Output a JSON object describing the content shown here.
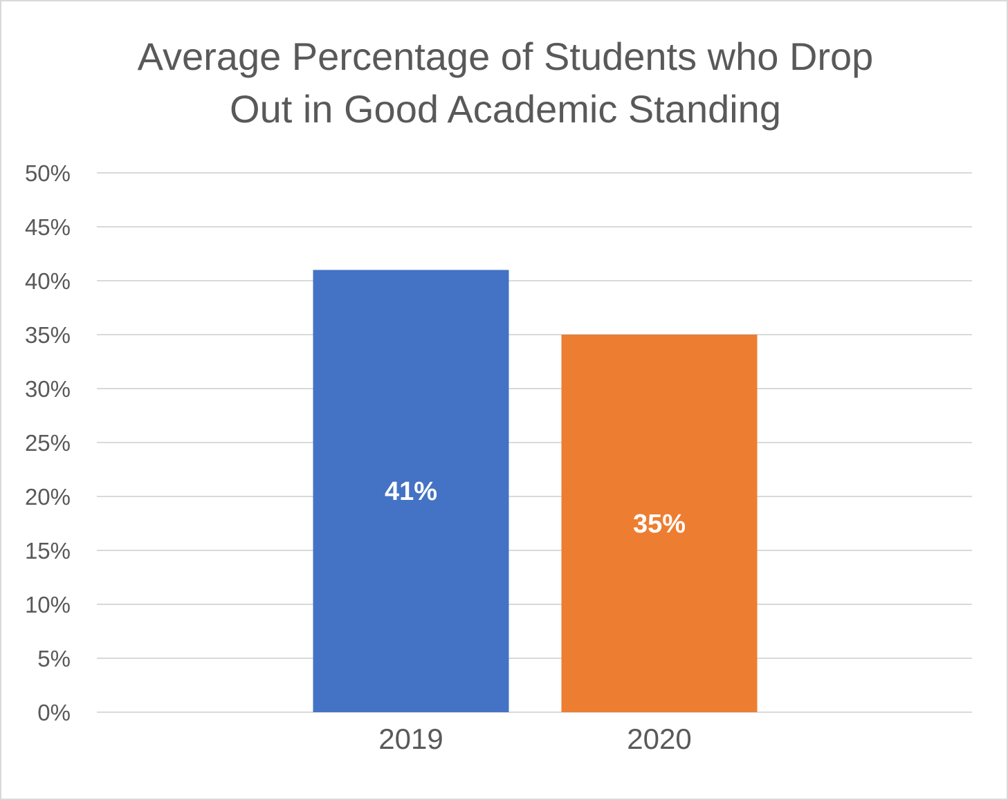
{
  "chart_data": {
    "type": "bar",
    "title": "Average Percentage of Students who Drop Out in Good Academic Standing",
    "title_lines": [
      "Average Percentage of Students who Drop",
      "Out in Good Academic Standing"
    ],
    "categories": [
      "2019",
      "2020"
    ],
    "values": [
      0.41,
      0.35
    ],
    "data_labels": [
      "41%",
      "35%"
    ],
    "bar_colors": [
      "#4472c4",
      "#ed7d31"
    ],
    "ylim": [
      0,
      0.5
    ],
    "yticks": [
      0,
      0.05,
      0.1,
      0.15,
      0.2,
      0.25,
      0.3,
      0.35,
      0.4,
      0.45,
      0.5
    ],
    "ytick_labels": [
      "0%",
      "5%",
      "10%",
      "15%",
      "20%",
      "25%",
      "30%",
      "35%",
      "40%",
      "45%",
      "50%"
    ],
    "xlabel": "",
    "ylabel": "",
    "grid": true,
    "legend": "none",
    "colors": {
      "gridline": "#d9d9d9",
      "text": "#595959",
      "border": "#d9d9d9"
    }
  }
}
